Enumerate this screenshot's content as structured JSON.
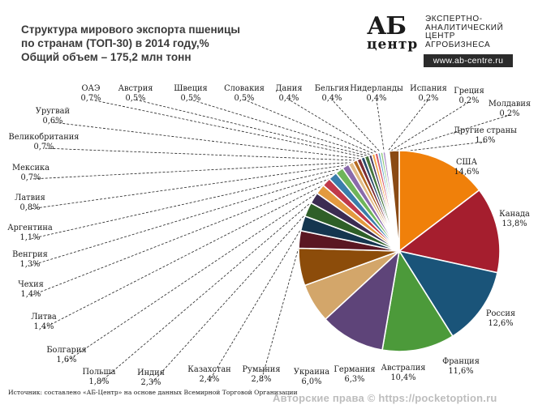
{
  "title": {
    "line1": "Структура мирового экспорта пшеницы",
    "line2": "по странам (ТОП-30) в 2014 году,%",
    "line3": "Общий объем – 175,2 млн тонн"
  },
  "logo": {
    "mark_top": "АБ",
    "mark_bottom": "центр",
    "text_lines": [
      "ЭКСПЕРТНО-",
      "АНАЛИТИЧЕСКИЙ",
      "ЦЕНТР",
      "АГРОБИЗНЕСА"
    ],
    "url": "www.ab-centre.ru"
  },
  "source": "Источник: составлено «АБ-Центр» на основе данных Всемирной Торговой Организации",
  "watermark": "Авторские права © https://pocketoption.ru",
  "chart_data": {
    "type": "pie",
    "title": "Структура мирового экспорта пшеницы по странам (ТОП-30) в 2014 году,%",
    "unit": "%",
    "slices": [
      {
        "label": "США",
        "value": 14.6,
        "text": "14,6%",
        "color": "#f0800a"
      },
      {
        "label": "Канада",
        "value": 13.8,
        "text": "13,8%",
        "color": "#a51e2e"
      },
      {
        "label": "Россия",
        "value": 12.6,
        "text": "12,6%",
        "color": "#1a5479"
      },
      {
        "label": "Франция",
        "value": 11.6,
        "text": "11,6%",
        "color": "#4c9a3a"
      },
      {
        "label": "Австралия",
        "value": 10.4,
        "text": "10,4%",
        "color": "#5e4479"
      },
      {
        "label": "Германия",
        "value": 6.3,
        "text": "6,3%",
        "color": "#d3a66a"
      },
      {
        "label": "Украина",
        "value": 6.0,
        "text": "6,0%",
        "color": "#8c4c0a"
      },
      {
        "label": "Румыния",
        "value": 2.8,
        "text": "2,8%",
        "color": "#5a1722"
      },
      {
        "label": "Казахстан",
        "value": 2.4,
        "text": "2,4%",
        "color": "#15364f"
      },
      {
        "label": "Индия",
        "value": 2.3,
        "text": "2,3%",
        "color": "#2f5f28"
      },
      {
        "label": "Польша",
        "value": 1.8,
        "text": "1,8%",
        "color": "#3c2c52"
      },
      {
        "label": "Болгария",
        "value": 1.6,
        "text": "1,6%",
        "color": "#e39a3f"
      },
      {
        "label": "Литва",
        "value": 1.4,
        "text": "1,4%",
        "color": "#c0394a"
      },
      {
        "label": "Чехия",
        "value": 1.4,
        "text": "1,4%",
        "color": "#3a7eab"
      },
      {
        "label": "Венгрия",
        "value": 1.3,
        "text": "1,3%",
        "color": "#6fb55a"
      },
      {
        "label": "Аргентина",
        "value": 1.1,
        "text": "1,1%",
        "color": "#8a6aab"
      },
      {
        "label": "Латвия",
        "value": 0.8,
        "text": "0,8%",
        "color": "#e2bc86"
      },
      {
        "label": "Мексика",
        "value": 0.7,
        "text": "0,7%",
        "color": "#b56a1f"
      },
      {
        "label": "Великобритания",
        "value": 0.7,
        "text": "0,7%",
        "color": "#7a2a34"
      },
      {
        "label": "Уругвай",
        "value": 0.6,
        "text": "0,6%",
        "color": "#2a4a6a"
      },
      {
        "label": "ОАЭ",
        "value": 0.7,
        "text": "0,7%",
        "color": "#45743a"
      },
      {
        "label": "Австрия",
        "value": 0.5,
        "text": "0,5%",
        "color": "#4a3a62"
      },
      {
        "label": "Швеция",
        "value": 0.5,
        "text": "0,5%",
        "color": "#f5a84a"
      },
      {
        "label": "Словакия",
        "value": 0.5,
        "text": "0,5%",
        "color": "#d75a69"
      },
      {
        "label": "Дания",
        "value": 0.4,
        "text": "0,4%",
        "color": "#5a9ac9"
      },
      {
        "label": "Бельгия",
        "value": 0.4,
        "text": "0,4%",
        "color": "#8ec97a"
      },
      {
        "label": "Нидерланды",
        "value": 0.4,
        "text": "0,4%",
        "color": "#a88ac5"
      },
      {
        "label": "Испания",
        "value": 0.2,
        "text": "0,2%",
        "color": "#ecd0a6"
      },
      {
        "label": "Греция",
        "value": 0.2,
        "text": "0,2%",
        "color": "#e08a30"
      },
      {
        "label": "Молдавия",
        "value": 0.2,
        "text": "0,2%",
        "color": "#a0303c"
      },
      {
        "label": "Другие страны",
        "value": 1.6,
        "text": "1,6%",
        "color": "#8a4a14"
      }
    ]
  }
}
